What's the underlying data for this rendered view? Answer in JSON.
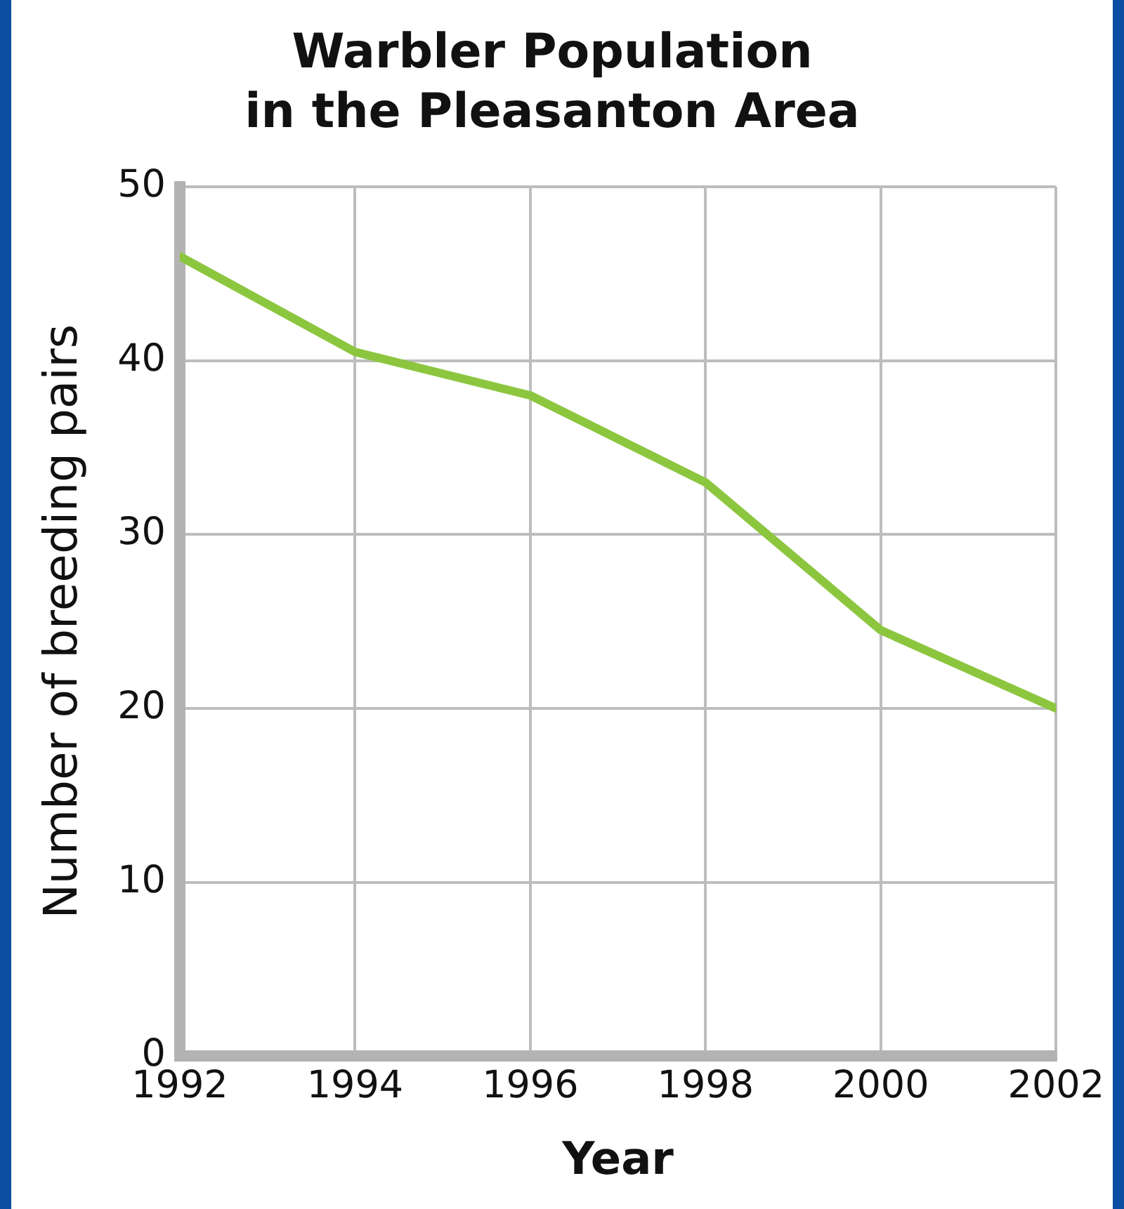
{
  "chart_data": {
    "type": "line",
    "title": [
      "Warbler Population",
      "in the Pleasanton Area"
    ],
    "xlabel": "Year",
    "ylabel": "Number of breeding pairs",
    "x": [
      1992,
      1994,
      1996,
      1998,
      2000,
      2002
    ],
    "series": [
      {
        "color": "#8cc63f",
        "values": [
          46,
          40.5,
          38,
          33,
          24.5,
          20
        ]
      }
    ],
    "xlim": [
      1992,
      2002
    ],
    "xticks": [
      1992,
      1994,
      1996,
      1998,
      2000,
      2002
    ],
    "ylim": [
      0,
      50
    ],
    "yticks": [
      0,
      10,
      20,
      30,
      40,
      50
    ],
    "grid": true,
    "legend": false,
    "marker": "none",
    "line_style": "solid"
  }
}
